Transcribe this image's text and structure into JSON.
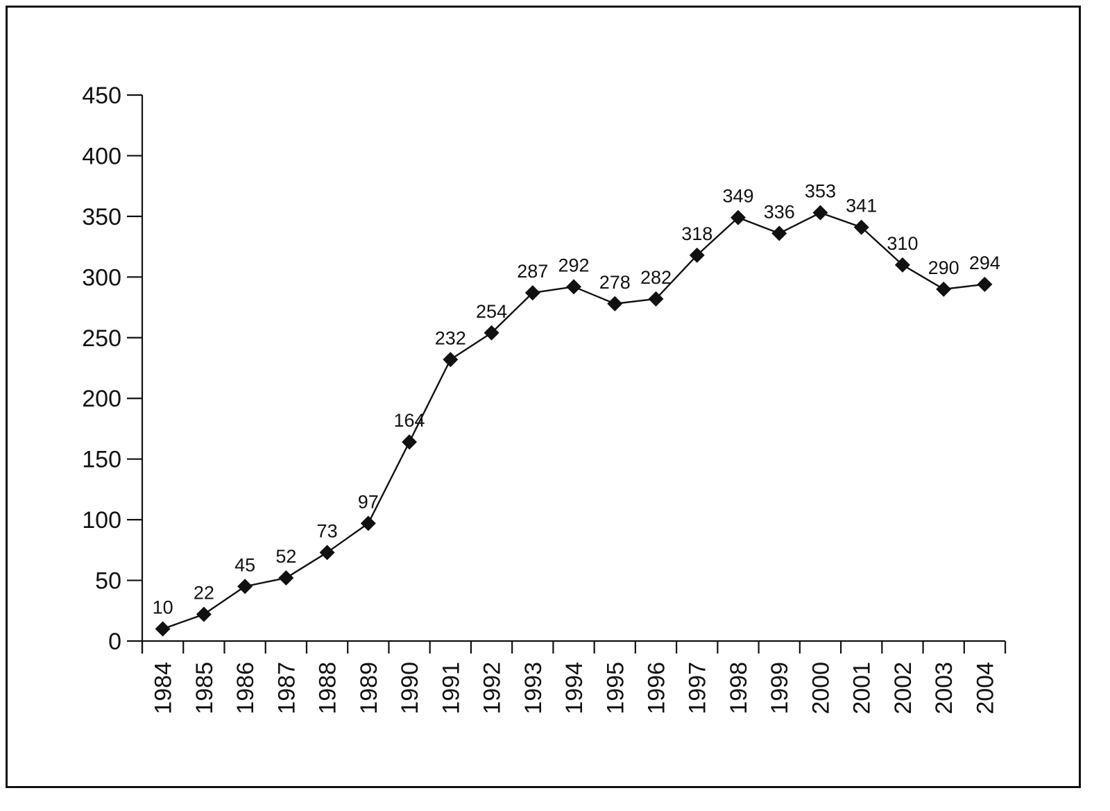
{
  "chart_data": {
    "type": "line",
    "title": "",
    "xlabel": "",
    "ylabel": "",
    "x": [
      "1984",
      "1985",
      "1986",
      "1987",
      "1988",
      "1989",
      "1990",
      "1991",
      "1992",
      "1993",
      "1994",
      "1995",
      "1996",
      "1997",
      "1998",
      "1999",
      "2000",
      "2001",
      "2002",
      "2003",
      "2004"
    ],
    "values": [
      10,
      22,
      45,
      52,
      73,
      97,
      164,
      232,
      254,
      287,
      292,
      278,
      282,
      318,
      349,
      336,
      353,
      341,
      310,
      290,
      294
    ],
    "data_labels": [
      "10",
      "22",
      "45",
      "52",
      "73",
      "97",
      "164",
      "232",
      "254",
      "287",
      "292",
      "278",
      "282",
      "318",
      "349",
      "336",
      "353",
      "341",
      "310",
      "290",
      "294"
    ],
    "ylim": [
      0,
      450
    ],
    "yticks": [
      "0",
      "50",
      "100",
      "150",
      "200",
      "250",
      "300",
      "350",
      "400",
      "450"
    ],
    "grid": false,
    "legend": "none",
    "marker": "diamond",
    "colors": {
      "line": "#111111",
      "marker": "#111111",
      "axis": "#111111",
      "frame": "#111111"
    }
  }
}
